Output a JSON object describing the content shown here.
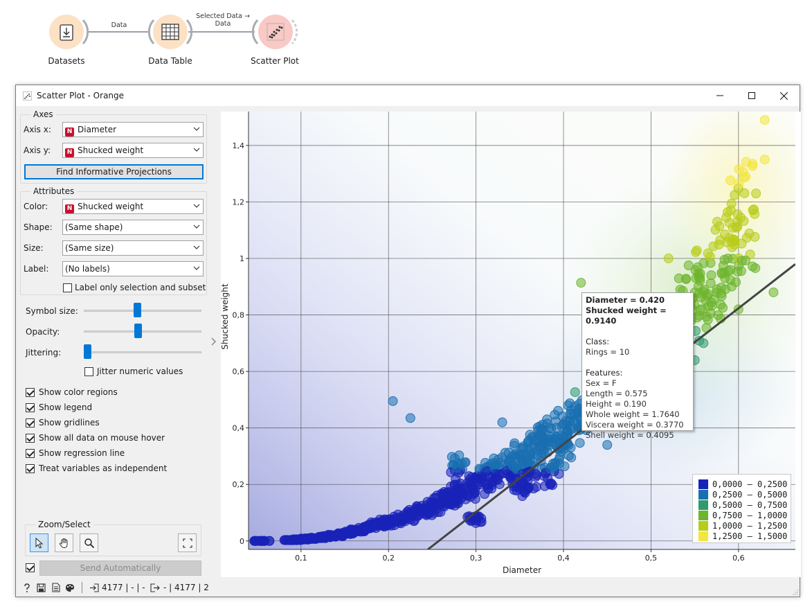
{
  "workflow": {
    "nodes": [
      {
        "name": "Datasets"
      },
      {
        "name": "Data Table"
      },
      {
        "name": "Scatter Plot"
      }
    ],
    "links": [
      {
        "label": "Data"
      },
      {
        "label_line1": "Selected  Data →",
        "label_line2": "Data"
      }
    ]
  },
  "window": {
    "title": "Scatter Plot - Orange"
  },
  "axes_box": {
    "title": "Axes",
    "x_label": "Axis x:",
    "x_value": "Diameter",
    "y_label": "Axis y:",
    "y_value": "Shucked weight",
    "find_button": "Find Informative Projections"
  },
  "attributes_box": {
    "title": "Attributes",
    "color_label": "Color:",
    "color_value": "Shucked weight",
    "shape_label": "Shape:",
    "shape_value": "(Same shape)",
    "size_label": "Size:",
    "size_value": "(Same size)",
    "label_label": "Label:",
    "label_value": "(No labels)",
    "label_only_selection": "Label only selection and subset"
  },
  "sliders": {
    "symbol_size_label": "Symbol size:",
    "symbol_size_level": 0.45,
    "opacity_label": "Opacity:",
    "opacity_level": 0.46,
    "jittering_label": "Jittering:",
    "jittering_level": 0.0,
    "jitter_numeric": "Jitter numeric values"
  },
  "options": [
    {
      "label": "Show color regions",
      "checked": true
    },
    {
      "label": "Show legend",
      "checked": true
    },
    {
      "label": "Show gridlines",
      "checked": true
    },
    {
      "label": "Show all data on mouse hover",
      "checked": true
    },
    {
      "label": "Show regression line",
      "checked": true
    },
    {
      "label": "Treat variables as independent",
      "checked": true
    }
  ],
  "zoom_select": {
    "title": "Zoom/Select"
  },
  "send": {
    "label": "Send Automatically",
    "checked": true
  },
  "status": {
    "input_summary": "4177 | - | -",
    "output_summary": "- | 4177 | 2"
  },
  "tooltip": {
    "line1": "Diameter = 0.420",
    "line2": "Shucked weight = 0.9140",
    "class_header": "Class:",
    "class_value": "Rings = 10",
    "features_header": "Features:",
    "features": [
      "Sex = F",
      "Length = 0.575",
      "Height = 0.190",
      "Whole weight = 1.7640",
      "Viscera weight = 0.3770",
      "Shell weight = 0.4095"
    ]
  },
  "legend": {
    "items": [
      {
        "label": "0,0000 – 0,2500",
        "color": "#1a23b8"
      },
      {
        "label": "0,2500 – 0,5000",
        "color": "#1a6fb0"
      },
      {
        "label": "0,5000 – 0,7500",
        "color": "#2e9a6e"
      },
      {
        "label": "0,7500 – 1,0000",
        "color": "#6db52c"
      },
      {
        "label": "1,0000 – 1,2500",
        "color": "#b8cc1a"
      },
      {
        "label": "1,2500 – 1,5000",
        "color": "#f2e640"
      }
    ]
  },
  "chart_data": {
    "type": "scatter",
    "xlabel": "Diameter",
    "ylabel": "Shucked weight",
    "xlim": [
      0.04,
      0.665
    ],
    "ylim": [
      -0.03,
      1.52
    ],
    "x_ticks": [
      "0,1",
      "0,2",
      "0,3",
      "0,4",
      "0,5",
      "0,6"
    ],
    "y_ticks": [
      "0",
      "0,2",
      "0,4",
      "0,6",
      "0,8",
      "1",
      "1,2",
      "1,4"
    ],
    "grid": true,
    "legend_position": "bottom-right",
    "regression": {
      "x": [
        0.245,
        0.665
      ],
      "y": [
        -0.03,
        0.98
      ]
    },
    "points": [
      [
        0.055,
        0.0
      ],
      [
        0.09,
        0.003
      ],
      [
        0.1,
        0.005
      ],
      [
        0.11,
        0.008
      ],
      [
        0.12,
        0.01
      ],
      [
        0.13,
        0.015
      ],
      [
        0.14,
        0.02
      ],
      [
        0.15,
        0.025
      ],
      [
        0.16,
        0.035
      ],
      [
        0.17,
        0.04
      ],
      [
        0.18,
        0.05
      ],
      [
        0.19,
        0.06
      ],
      [
        0.2,
        0.065
      ],
      [
        0.21,
        0.075
      ],
      [
        0.22,
        0.085
      ],
      [
        0.23,
        0.1
      ],
      [
        0.24,
        0.11
      ],
      [
        0.25,
        0.12
      ],
      [
        0.26,
        0.14
      ],
      [
        0.27,
        0.15
      ],
      [
        0.28,
        0.17
      ],
      [
        0.29,
        0.18
      ],
      [
        0.3,
        0.2
      ],
      [
        0.31,
        0.22
      ],
      [
        0.32,
        0.24
      ],
      [
        0.33,
        0.26
      ],
      [
        0.34,
        0.28
      ],
      [
        0.35,
        0.3
      ],
      [
        0.36,
        0.32
      ],
      [
        0.37,
        0.34
      ],
      [
        0.38,
        0.36
      ],
      [
        0.39,
        0.38
      ],
      [
        0.4,
        0.4
      ],
      [
        0.41,
        0.42
      ],
      [
        0.42,
        0.45
      ],
      [
        0.43,
        0.47
      ],
      [
        0.44,
        0.5
      ],
      [
        0.45,
        0.52
      ],
      [
        0.46,
        0.55
      ],
      [
        0.47,
        0.58
      ],
      [
        0.48,
        0.6
      ],
      [
        0.49,
        0.63
      ],
      [
        0.5,
        0.66
      ],
      [
        0.51,
        0.7
      ],
      [
        0.52,
        0.73
      ],
      [
        0.53,
        0.76
      ],
      [
        0.54,
        0.8
      ],
      [
        0.55,
        0.85
      ],
      [
        0.56,
        0.9
      ],
      [
        0.57,
        0.95
      ],
      [
        0.58,
        1.0
      ],
      [
        0.59,
        1.05
      ],
      [
        0.6,
        1.1
      ],
      [
        0.61,
        1.15
      ],
      [
        0.205,
        0.495
      ],
      [
        0.225,
        0.435
      ],
      [
        0.63,
        1.49
      ],
      [
        0.63,
        1.35
      ],
      [
        0.62,
        1.23
      ],
      [
        0.42,
        0.914
      ],
      [
        0.385,
        0.235
      ],
      [
        0.3,
        0.075
      ],
      [
        0.35,
        0.19
      ],
      [
        0.28,
        0.26
      ],
      [
        0.33,
        0.42
      ],
      [
        0.45,
        0.34
      ],
      [
        0.5,
        0.52
      ],
      [
        0.55,
        0.64
      ],
      [
        0.6,
        0.82
      ],
      [
        0.64,
        0.88
      ],
      [
        0.52,
        1.0
      ],
      [
        0.56,
        0.7
      ],
      [
        0.48,
        0.6
      ],
      [
        0.4,
        0.32
      ],
      [
        0.36,
        0.22
      ],
      [
        0.27,
        0.15
      ]
    ]
  }
}
